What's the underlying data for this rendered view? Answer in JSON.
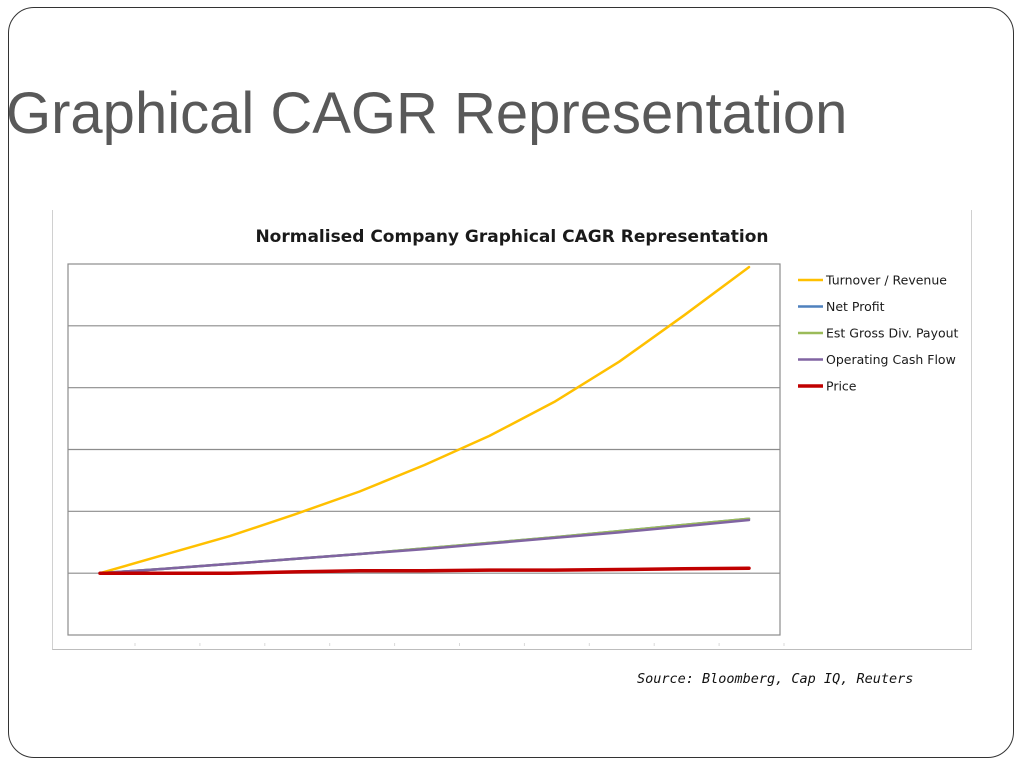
{
  "slide": {
    "title": "Graphical CAGR Representation",
    "source": "Source: Bloomberg, Cap IQ, Reuters"
  },
  "chart_data": {
    "type": "line",
    "title": "Normalised Company Graphical CAGR Representation",
    "xlabel": "",
    "ylabel": "",
    "x": [
      1,
      2,
      3,
      4,
      5,
      6,
      7,
      8,
      9,
      10,
      11
    ],
    "ylim": [
      -1,
      5
    ],
    "grid": true,
    "legend_position": "right",
    "series": [
      {
        "name": "Turnover / Revenue",
        "color": "#FFC000",
        "values": [
          0,
          0.3,
          0.6,
          0.95,
          1.32,
          1.75,
          2.22,
          2.77,
          3.42,
          4.17,
          4.95
        ]
      },
      {
        "name": "Net Profit",
        "color": "#4F81BD",
        "values": [
          0,
          0.07,
          0.15,
          0.23,
          0.31,
          0.4,
          0.49,
          0.58,
          0.68,
          0.78,
          0.88
        ]
      },
      {
        "name": "Est Gross Div. Payout",
        "color": "#9BBB59",
        "values": [
          0,
          0.07,
          0.15,
          0.23,
          0.31,
          0.4,
          0.49,
          0.58,
          0.68,
          0.78,
          0.88
        ]
      },
      {
        "name": "Operating Cash Flow",
        "color": "#8064A2",
        "values": [
          0,
          0.07,
          0.15,
          0.23,
          0.31,
          0.39,
          0.48,
          0.57,
          0.66,
          0.76,
          0.86
        ]
      },
      {
        "name": "Price",
        "color": "#C00000",
        "values": [
          0,
          0,
          0,
          0.02,
          0.04,
          0.04,
          0.05,
          0.05,
          0.06,
          0.07,
          0.08
        ]
      }
    ]
  }
}
